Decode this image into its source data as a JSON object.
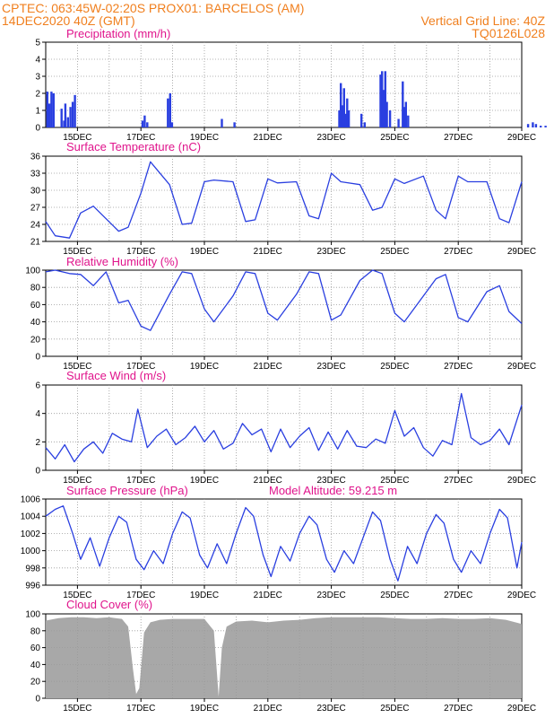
{
  "header": {
    "line1_left": "CPTEC:   063:45W-02:20S   PROX01: BARCELOS (AM)",
    "line2_left": "14DEC2020 40Z (GMT)",
    "line2_right": "Vertical Grid Line: 40Z",
    "line3_right": "TQ0126L028"
  },
  "colors": {
    "header": "#f07f1e",
    "title": "#e0148c",
    "series": "#2a3fe0",
    "cloud": "#a8a8a8",
    "grid": "#9a9a9a"
  },
  "x_axis": {
    "start": "14DEC2020",
    "end": "29DEC2020",
    "tick_labels": [
      "15DEC",
      "17DEC",
      "19DEC",
      "21DEC",
      "23DEC",
      "25DEC",
      "27DEC",
      "29DEC"
    ],
    "tick_days": [
      1,
      3,
      5,
      7,
      9,
      11,
      13,
      15
    ],
    "grid_days": [
      1,
      2,
      3,
      4,
      5,
      6,
      7,
      8,
      9,
      10,
      11,
      12,
      13,
      14
    ]
  },
  "chart_data": [
    {
      "type": "bar",
      "title": "Precipitation (mm/h)",
      "ylim": [
        0,
        5
      ],
      "yticks": [
        0,
        1,
        2,
        3,
        4,
        5
      ],
      "x_days": [
        0.05,
        0.12,
        0.18,
        0.25,
        0.5,
        0.58,
        0.62,
        0.7,
        0.78,
        0.85,
        0.92,
        3.05,
        3.12,
        3.2,
        3.85,
        3.92,
        3.98,
        5.55,
        5.95,
        9.25,
        9.3,
        9.35,
        9.4,
        9.45,
        9.5,
        9.55,
        9.95,
        10.05,
        10.55,
        10.6,
        10.65,
        10.7,
        10.75,
        10.85,
        11.12,
        11.25,
        11.3,
        11.35,
        11.42,
        15.2,
        15.35,
        15.45,
        15.6,
        15.75
      ],
      "values": [
        2.1,
        1.4,
        2.1,
        2.0,
        1.1,
        0.4,
        1.4,
        0.6,
        1.2,
        1.5,
        1.9,
        0.4,
        0.7,
        0.3,
        1.7,
        2.0,
        0.3,
        0.5,
        0.3,
        1.0,
        2.6,
        1.3,
        2.3,
        0.8,
        1.7,
        1.0,
        0.8,
        0.3,
        3.1,
        3.3,
        2.2,
        3.3,
        1.5,
        1.0,
        0.5,
        2.7,
        1.2,
        1.5,
        0.7,
        0.2,
        0.3,
        0.2,
        0.1,
        0.1
      ]
    },
    {
      "type": "line",
      "title": "Surface Temperature (nC)",
      "ylim": [
        21,
        36
      ],
      "yticks": [
        21,
        24,
        27,
        30,
        33,
        36
      ],
      "x_days": [
        0,
        0.3,
        0.75,
        1.1,
        1.5,
        1.9,
        2.3,
        2.6,
        3.0,
        3.3,
        3.9,
        4.3,
        4.6,
        5.0,
        5.3,
        5.9,
        6.3,
        6.6,
        7.0,
        7.3,
        7.9,
        8.3,
        8.6,
        9.0,
        9.3,
        9.9,
        10.3,
        10.6,
        11.0,
        11.3,
        11.9,
        12.3,
        12.6,
        13.0,
        13.3,
        13.9,
        14.3,
        14.6,
        15.0
      ],
      "values": [
        24.5,
        22.0,
        21.6,
        26.0,
        27.2,
        25.0,
        22.8,
        23.5,
        29.5,
        35.0,
        31.0,
        24.0,
        24.2,
        31.5,
        31.8,
        31.5,
        24.5,
        24.8,
        32.0,
        31.3,
        31.5,
        25.5,
        25.0,
        33.0,
        31.5,
        31.0,
        26.5,
        27.0,
        32.0,
        31.2,
        32.5,
        26.5,
        25.0,
        32.5,
        31.5,
        31.5,
        25.0,
        24.3,
        31.5
      ]
    },
    {
      "type": "line",
      "title": "Relative Humidity (%)",
      "ylim": [
        0,
        100
      ],
      "yticks": [
        0,
        20,
        40,
        60,
        80,
        100
      ],
      "x_days": [
        0,
        0.3,
        0.75,
        1.1,
        1.5,
        1.9,
        2.3,
        2.6,
        3.0,
        3.3,
        3.9,
        4.3,
        4.6,
        5.0,
        5.3,
        5.9,
        6.3,
        6.6,
        7.0,
        7.3,
        7.9,
        8.3,
        8.6,
        9.0,
        9.3,
        9.9,
        10.3,
        10.6,
        11.0,
        11.3,
        11.9,
        12.3,
        12.6,
        13.0,
        13.3,
        13.9,
        14.3,
        14.6,
        15.0
      ],
      "values": [
        98,
        100,
        96,
        95,
        82,
        98,
        62,
        65,
        35,
        30,
        72,
        98,
        96,
        55,
        40,
        70,
        98,
        96,
        50,
        42,
        72,
        98,
        96,
        42,
        48,
        88,
        100,
        96,
        50,
        40,
        70,
        90,
        95,
        45,
        40,
        75,
        82,
        52,
        38
      ]
    },
    {
      "type": "line",
      "title": "Surface Wind (m/s)",
      "ylim": [
        0,
        6
      ],
      "yticks": [
        0,
        2,
        4,
        6
      ],
      "x_days": [
        0,
        0.3,
        0.6,
        0.9,
        1.2,
        1.5,
        1.8,
        2.1,
        2.4,
        2.7,
        2.9,
        3.2,
        3.5,
        3.8,
        4.1,
        4.4,
        4.7,
        5.0,
        5.3,
        5.6,
        5.9,
        6.2,
        6.5,
        6.8,
        7.1,
        7.4,
        7.7,
        8.0,
        8.3,
        8.6,
        8.9,
        9.2,
        9.5,
        9.8,
        10.1,
        10.4,
        10.7,
        11.0,
        11.3,
        11.6,
        11.9,
        12.2,
        12.5,
        12.8,
        13.1,
        13.4,
        13.7,
        14.0,
        14.3,
        14.6,
        15.0
      ],
      "values": [
        1.6,
        0.8,
        1.8,
        0.6,
        1.5,
        2.0,
        1.2,
        2.6,
        2.2,
        2.0,
        4.3,
        1.6,
        2.4,
        2.9,
        1.8,
        2.3,
        3.1,
        2.0,
        2.8,
        1.5,
        1.9,
        3.3,
        2.5,
        2.9,
        1.3,
        2.9,
        1.6,
        2.4,
        3.0,
        1.4,
        2.7,
        1.5,
        2.8,
        1.7,
        1.6,
        2.2,
        1.9,
        4.2,
        2.4,
        3.0,
        1.6,
        1.0,
        2.1,
        1.8,
        5.4,
        2.3,
        1.8,
        2.1,
        2.9,
        1.8,
        4.6
      ]
    },
    {
      "type": "line",
      "title": "Surface Pressure (hPa)",
      "annotation": "Model Altitude: 59.215  m",
      "ylim": [
        996,
        1006
      ],
      "yticks": [
        996,
        998,
        1000,
        1002,
        1004,
        1006
      ],
      "x_days": [
        0,
        0.3,
        0.55,
        0.85,
        1.1,
        1.4,
        1.7,
        2.0,
        2.3,
        2.55,
        2.85,
        3.1,
        3.4,
        3.7,
        4.0,
        4.3,
        4.55,
        4.85,
        5.1,
        5.4,
        5.7,
        6.0,
        6.3,
        6.55,
        6.85,
        7.1,
        7.4,
        7.7,
        8.0,
        8.3,
        8.55,
        8.85,
        9.1,
        9.4,
        9.7,
        10.0,
        10.3,
        10.55,
        10.85,
        11.1,
        11.4,
        11.7,
        12.0,
        12.3,
        12.55,
        12.85,
        13.1,
        13.4,
        13.7,
        14.0,
        14.3,
        14.55,
        14.85,
        15.0
      ],
      "values": [
        1004.0,
        1004.8,
        1005.2,
        1002.0,
        999.0,
        1001.5,
        998.2,
        1001.5,
        1004.0,
        1003.3,
        999.0,
        997.8,
        1000.0,
        998.5,
        1002.0,
        1004.5,
        1003.8,
        999.5,
        998.0,
        1000.8,
        998.5,
        1002.0,
        1005.0,
        1004.0,
        999.5,
        997.0,
        1000.5,
        998.8,
        1002.0,
        1004.0,
        1003.0,
        999.0,
        997.5,
        1000.0,
        998.5,
        1001.5,
        1004.5,
        1003.5,
        999.0,
        996.5,
        1000.5,
        998.5,
        1002.0,
        1004.2,
        1003.2,
        999.0,
        997.5,
        1000.0,
        998.5,
        1002.0,
        1004.8,
        1003.8,
        998.0,
        1001.0
      ]
    },
    {
      "type": "area",
      "title": "Cloud Cover (%)",
      "ylim": [
        0,
        100
      ],
      "yticks": [
        0,
        20,
        40,
        60,
        80,
        100
      ],
      "x_days": [
        0,
        0.4,
        0.8,
        1.2,
        1.6,
        2.0,
        2.4,
        2.6,
        2.75,
        2.85,
        2.95,
        3.1,
        3.3,
        3.6,
        4.0,
        4.5,
        5.0,
        5.3,
        5.45,
        5.55,
        5.7,
        6.0,
        6.5,
        7.0,
        7.5,
        8.0,
        8.5,
        9.0,
        9.5,
        10.0,
        10.5,
        11.0,
        11.5,
        12.0,
        12.5,
        13.0,
        13.5,
        14.0,
        14.5,
        14.8,
        15.0
      ],
      "values": [
        92,
        95,
        96,
        96,
        95,
        96,
        94,
        85,
        35,
        5,
        12,
        78,
        90,
        93,
        94,
        94,
        94,
        80,
        2,
        60,
        85,
        91,
        92,
        90,
        92,
        93,
        95,
        96,
        96,
        96,
        96,
        95,
        94,
        94,
        95,
        94,
        94,
        95,
        93,
        90,
        88
      ]
    }
  ]
}
